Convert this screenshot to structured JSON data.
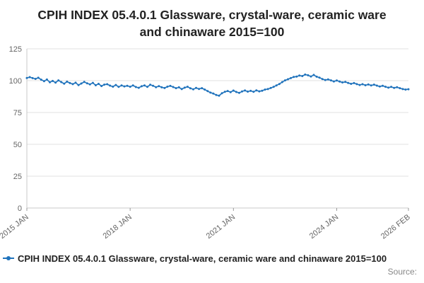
{
  "title": "CPIH INDEX 05.4.0.1 Glassware, crystal-ware, ceramic ware and chinaware 2015=100",
  "legend": {
    "label": "CPIH INDEX 05.4.0.1 Glassware, crystal-ware, ceramic ware and chinaware 2015=100"
  },
  "source_label": "Source:",
  "colors": {
    "line": "#2073bc",
    "grid": "#e0e0e0",
    "axis": "#c9c9c9",
    "tick_text": "#666666"
  },
  "chart_data": {
    "type": "line",
    "title": "CPIH INDEX 05.4.0.1 Glassware, crystal-ware, ceramic ware and chinaware 2015=100",
    "xlabel": "",
    "ylabel": "",
    "ylim": [
      0,
      125
    ],
    "y_ticks": [
      0,
      25,
      50,
      75,
      100,
      125
    ],
    "grid": true,
    "legend_position": "bottom-left",
    "x_start": "2015 JAN",
    "x_end": "2026 FEB",
    "x_tick_labels": [
      "2015 JAN",
      "2018 JAN",
      "2021 JAN",
      "2024 JAN",
      "2026 FEB"
    ],
    "x_tick_indices": [
      0,
      36,
      72,
      108,
      133
    ],
    "series": [
      {
        "name": "CPIH INDEX 05.4.0.1 Glassware, crystal-ware, ceramic ware and chinaware 2015=100",
        "values": [
          102.1,
          102.8,
          102.0,
          101.4,
          102.3,
          100.8,
          99.6,
          100.9,
          98.7,
          99.8,
          98.5,
          100.2,
          98.9,
          97.6,
          99.2,
          98.1,
          97.3,
          98.4,
          96.5,
          97.8,
          99.0,
          97.9,
          97.1,
          98.3,
          96.4,
          97.5,
          95.8,
          96.9,
          97.2,
          96.1,
          95.3,
          96.6,
          95.1,
          96.2,
          95.5,
          96.0,
          95.2,
          96.3,
          95.0,
          94.4,
          95.6,
          96.2,
          95.1,
          96.8,
          96.0,
          94.9,
          95.7,
          94.8,
          94.2,
          95.3,
          95.9,
          95.0,
          94.1,
          94.8,
          93.4,
          94.5,
          95.2,
          94.0,
          93.2,
          94.3,
          93.5,
          94.1,
          93.0,
          91.8,
          90.6,
          89.9,
          88.7,
          88.2,
          90.1,
          91.2,
          91.9,
          91.0,
          92.2,
          91.1,
          90.4,
          91.5,
          92.3,
          91.4,
          92.0,
          91.2,
          92.4,
          91.6,
          92.1,
          93.0,
          93.4,
          94.2,
          95.1,
          96.3,
          97.4,
          98.9,
          100.2,
          101.1,
          102.0,
          102.9,
          103.2,
          104.0,
          103.6,
          104.8,
          104.2,
          103.3,
          104.5,
          103.1,
          102.4,
          101.3,
          100.5,
          101.0,
          100.2,
          99.4,
          100.1,
          99.3,
          98.6,
          99.0,
          98.2,
          97.5,
          98.1,
          97.3,
          96.6,
          97.2,
          96.4,
          97.0,
          96.2,
          96.9,
          96.1,
          95.4,
          96.0,
          95.2,
          94.5,
          95.1,
          94.3,
          94.9,
          94.1,
          93.4,
          93.0,
          93.3
        ]
      }
    ]
  }
}
